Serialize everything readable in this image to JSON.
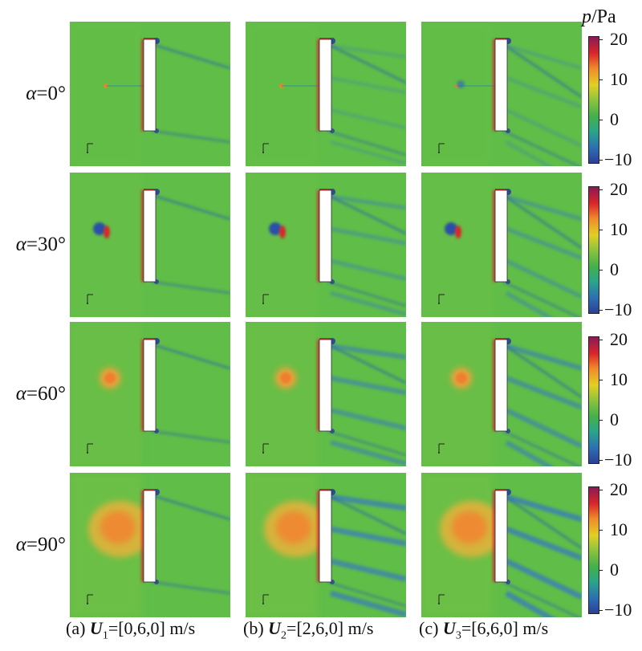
{
  "rows": [
    {
      "var": "α",
      "value": "=0°"
    },
    {
      "var": "α",
      "value": "=30°"
    },
    {
      "var": "α",
      "value": "=60°"
    },
    {
      "var": "α",
      "value": "=90°"
    }
  ],
  "columns": [
    {
      "prefix": "(a) ",
      "sym": "U",
      "sub": "1",
      "value": "=[0,6,0] m/s"
    },
    {
      "prefix": "(b) ",
      "sym": "U",
      "sub": "2",
      "value": "=[2,6,0] m/s"
    },
    {
      "prefix": "(c) ",
      "sym": "U",
      "sub": "3",
      "value": "=[6,6,0] m/s"
    }
  ],
  "colorbar": {
    "var": "p",
    "unit": "/Pa",
    "ticks": [
      "20",
      "10",
      "0",
      "−10"
    ],
    "colors": [
      "#8a1a55",
      "#d8262a",
      "#f08a2a",
      "#e2cf24",
      "#8dc43e",
      "#44b04a",
      "#2aa58a",
      "#2c6fb3",
      "#2b3f96"
    ]
  }
}
